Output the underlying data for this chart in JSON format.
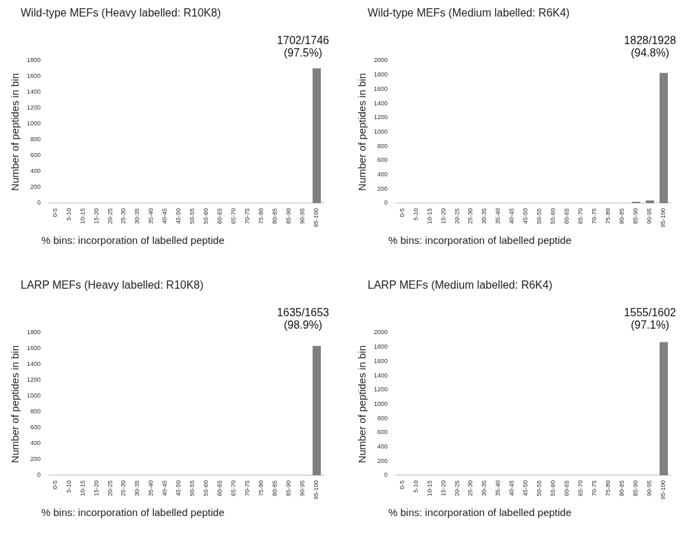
{
  "chart_data": [
    {
      "type": "bar",
      "title": "Wild-type MEFs (Heavy labelled: R10K8)",
      "xlabel": "% bins:  incorporation of labelled peptide",
      "ylabel": "Number of peptides in bin",
      "categories": [
        "0-5",
        "5-10",
        "10-15",
        "15-20",
        "20-25",
        "25-30",
        "30-35",
        "35-40",
        "40-45",
        "45-50",
        "50-55",
        "55-60",
        "60-65",
        "65-70",
        "70-75",
        "75-80",
        "80-85",
        "85-90",
        "90-95",
        "95-100"
      ],
      "values": [
        0,
        0,
        0,
        0,
        0,
        0,
        0,
        0,
        0,
        0,
        0,
        0,
        0,
        0,
        0,
        0,
        0,
        0,
        0,
        1702
      ],
      "color": "#808080",
      "ylim": [
        0,
        1800
      ],
      "yticks": [
        0,
        200,
        400,
        600,
        800,
        1000,
        1200,
        1400,
        1600,
        1800
      ],
      "grid": false,
      "annotations": [
        "1702/1746 (97.5%)"
      ]
    },
    {
      "type": "bar",
      "title": "Wild-type MEFs (Medium labelled: R6K4)",
      "xlabel": "% bins:  incorporation of labelled peptide",
      "ylabel": "Number of peptides in bin",
      "categories": [
        "0-5",
        "5-10",
        "10-15",
        "15-20",
        "20-25",
        "25-30",
        "30-35",
        "35-40",
        "40-45",
        "45-50",
        "50-55",
        "55-60",
        "60-65",
        "65-70",
        "70-75",
        "75-80",
        "80-85",
        "85-90",
        "90-95",
        "95-100"
      ],
      "values": [
        0,
        0,
        0,
        0,
        0,
        0,
        0,
        0,
        0,
        0,
        0,
        0,
        0,
        0,
        0,
        0,
        0,
        20,
        40,
        1828
      ],
      "color": "#808080",
      "ylim": [
        0,
        2000
      ],
      "yticks": [
        0,
        200,
        400,
        600,
        800,
        1000,
        1200,
        1400,
        1600,
        1800,
        2000
      ],
      "grid": false,
      "annotations": [
        "1828/1928 (94.8%)"
      ]
    },
    {
      "type": "bar",
      "title": "LARP MEFs (Heavy labelled: R10K8)",
      "xlabel": "% bins:  incorporation of labelled peptide",
      "ylabel": "Number of peptides in bin",
      "categories": [
        "0-5",
        "5-10",
        "10-15",
        "15-20",
        "20-25",
        "25-30",
        "30-35",
        "35-40",
        "40-45",
        "45-50",
        "50-55",
        "55-60",
        "60-65",
        "65-70",
        "70-75",
        "75-80",
        "80-85",
        "85-90",
        "90-95",
        "95-100"
      ],
      "values": [
        0,
        0,
        0,
        0,
        0,
        0,
        0,
        0,
        0,
        0,
        0,
        0,
        0,
        0,
        0,
        0,
        0,
        0,
        0,
        1635
      ],
      "color": "#808080",
      "ylim": [
        0,
        1800
      ],
      "yticks": [
        0,
        200,
        400,
        600,
        800,
        1000,
        1200,
        1400,
        1600,
        1800
      ],
      "grid": false,
      "annotations": [
        "1635/1653 (98.9%)"
      ]
    },
    {
      "type": "bar",
      "title": "LARP MEFs (Medium labelled: R6K4)",
      "xlabel": "% bins:  incorporation of labelled peptide",
      "ylabel": "Number of peptides in bin",
      "categories": [
        "0-5",
        "5-10",
        "10-15",
        "15-20",
        "20-25",
        "25-30",
        "30-35",
        "35-40",
        "40-45",
        "45-50",
        "50-55",
        "55-60",
        "60-65",
        "65-70",
        "70-75",
        "75-80",
        "80-85",
        "85-90",
        "90-95",
        "95-100"
      ],
      "values": [
        0,
        0,
        0,
        0,
        0,
        0,
        0,
        0,
        0,
        0,
        0,
        0,
        0,
        0,
        0,
        0,
        0,
        0,
        0,
        1870
      ],
      "color": "#808080",
      "ylim": [
        0,
        2000
      ],
      "yticks": [
        0,
        200,
        400,
        600,
        800,
        1000,
        1200,
        1400,
        1600,
        1800,
        2000
      ],
      "grid": false,
      "annotations": [
        "1555/1602 (97.1%)"
      ]
    }
  ]
}
